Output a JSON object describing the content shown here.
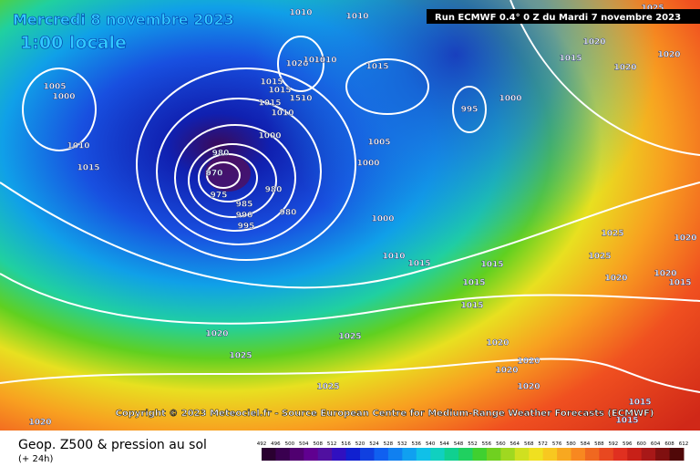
{
  "header": {
    "date": "Mercredi 8 novembre 2023",
    "time": "1:00 locale",
    "run": "Run ECMWF 0.4° 0 Z du Mardi 7 novembre 2023"
  },
  "copyright": "Copyright © 2023 Meteociel.fr - Source European Centre for Medium-Range Weather Forecasts (ECMWF)",
  "footer": {
    "title": "Geop. Z500 & pression au sol",
    "lead": "(+ 24h)"
  },
  "colorbar": {
    "ticks": [
      492,
      496,
      500,
      504,
      508,
      512,
      516,
      520,
      524,
      528,
      532,
      536,
      540,
      544,
      548,
      552,
      556,
      560,
      564,
      568,
      572,
      576,
      580,
      584,
      588,
      592,
      596,
      600,
      604,
      608,
      612
    ]
  },
  "isobar_labels": [
    "1010",
    "1010",
    "1020",
    "1015",
    "1020",
    "1020",
    "1005",
    "1000",
    "1020",
    "1015",
    "1010",
    "1015",
    "1015",
    "1015",
    "1015",
    "1510",
    "1010",
    "1000",
    "995",
    "1000",
    "1005",
    "1010",
    "1015",
    "980",
    "970",
    "975",
    "980",
    "985",
    "990",
    "995",
    "980",
    "1000",
    "1000",
    "1010",
    "1015",
    "1015",
    "1025",
    "1025",
    "1020",
    "1015",
    "1015",
    "1020",
    "1020",
    "1015",
    "1020",
    "1025",
    "1025",
    "1020",
    "1020",
    "1020",
    "1025",
    "1020",
    "1015",
    "1015",
    "1020",
    "1025"
  ]
}
